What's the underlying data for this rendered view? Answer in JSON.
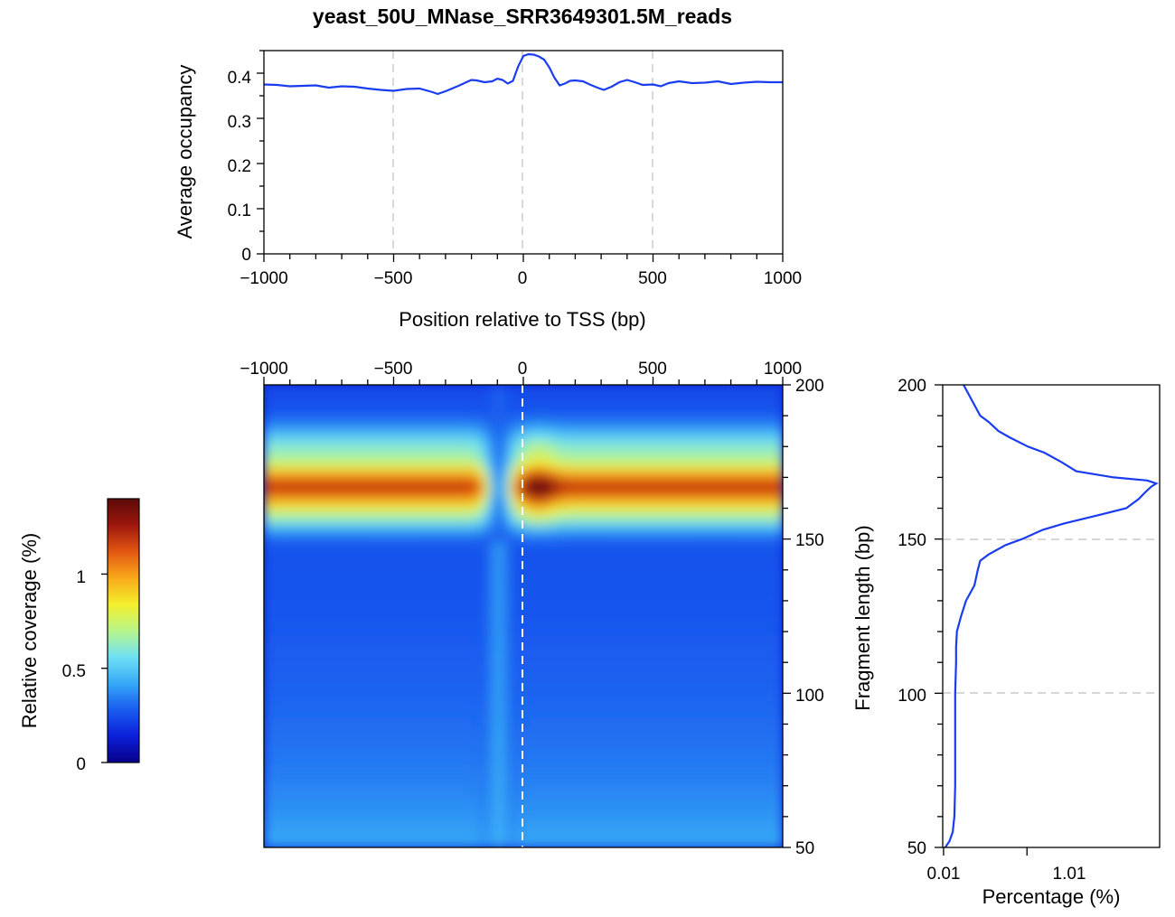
{
  "chart_data": [
    {
      "type": "line",
      "title": "yeast_50U_MNase_SRR3649301.5M_reads",
      "xlabel": "Position relative to TSS (bp)",
      "ylabel": "Average occupancy",
      "xlim": [
        -1000,
        1000
      ],
      "ylim": [
        0,
        0.45
      ],
      "xticks": [
        -1000,
        -500,
        0,
        500,
        1000
      ],
      "xtick_labels": [
        "−1000",
        "−500",
        "0",
        "500",
        "1000"
      ],
      "yticks": [
        0,
        0.1,
        0.2,
        0.3,
        0.4
      ],
      "ytick_labels": [
        "0",
        "0.1",
        "0.2",
        "0.3",
        "0.4"
      ],
      "vlines": [
        -500,
        0,
        500
      ],
      "grid": false,
      "series": [
        {
          "color": "#1a3cf0",
          "x": [
            -1000,
            -950,
            -900,
            -850,
            -800,
            -750,
            -700,
            -650,
            -600,
            -550,
            -500,
            -450,
            -400,
            -350,
            -330,
            -300,
            -250,
            -220,
            -200,
            -180,
            -150,
            -120,
            -100,
            -80,
            -60,
            -40,
            -20,
            0,
            20,
            40,
            60,
            80,
            100,
            120,
            140,
            160,
            180,
            200,
            230,
            260,
            290,
            310,
            340,
            370,
            400,
            430,
            460,
            500,
            530,
            560,
            600,
            650,
            700,
            750,
            800,
            850,
            900,
            950,
            1000
          ],
          "y": [
            0.375,
            0.374,
            0.371,
            0.372,
            0.373,
            0.368,
            0.371,
            0.37,
            0.366,
            0.363,
            0.361,
            0.365,
            0.366,
            0.358,
            0.354,
            0.36,
            0.372,
            0.38,
            0.385,
            0.384,
            0.38,
            0.382,
            0.388,
            0.385,
            0.377,
            0.383,
            0.415,
            0.438,
            0.442,
            0.441,
            0.437,
            0.43,
            0.413,
            0.39,
            0.373,
            0.377,
            0.383,
            0.384,
            0.382,
            0.374,
            0.367,
            0.363,
            0.37,
            0.38,
            0.385,
            0.38,
            0.374,
            0.375,
            0.371,
            0.378,
            0.382,
            0.378,
            0.379,
            0.382,
            0.376,
            0.379,
            0.381,
            0.38,
            0.38
          ]
        }
      ]
    },
    {
      "type": "heatmap",
      "xlabel": "",
      "ylabel": "",
      "xlim": [
        -1000,
        1000
      ],
      "ylim": [
        50,
        200
      ],
      "xticks": [
        -1000,
        -500,
        0,
        500,
        1000
      ],
      "xtick_labels": [
        "−1000",
        "−500",
        "0",
        "500",
        "1000"
      ],
      "yticks": [
        50,
        100,
        150,
        200
      ],
      "ytick_labels": [
        "50",
        "100",
        "150",
        "200"
      ],
      "vlines": [
        0
      ],
      "grid": false,
      "colormap": [
        "#08008a",
        "#0b1fd8",
        "#1a5cf0",
        "#35a8f6",
        "#6fe1f4",
        "#b8f58a",
        "#f4ef2b",
        "#f8a91a",
        "#e25611",
        "#9d170e",
        "#5c0a08"
      ],
      "peak_fragment_length": 167,
      "peak_position_bp": 60
    },
    {
      "type": "heatmap-colorbar",
      "label": "Relative coverage (%)",
      "range": [
        0,
        1.4
      ],
      "ticks": [
        0,
        0.5,
        1
      ],
      "tick_labels": [
        "0",
        "0.5",
        "1"
      ]
    },
    {
      "type": "line",
      "orientation": "vertical",
      "xlabel": "Percentage (%)",
      "ylabel": "Fragment length (bp)",
      "xlim": [
        0,
        2.6
      ],
      "ylim": [
        50,
        200
      ],
      "xticks": [
        0.01,
        1.01
      ],
      "xtick_labels": [
        "0.01",
        "1.01"
      ],
      "yticks": [
        50,
        100,
        150,
        200
      ],
      "ytick_labels": [
        "50",
        "100",
        "150",
        "200"
      ],
      "hlines": [
        100,
        150
      ],
      "grid": false,
      "series": [
        {
          "color": "#1a3cf0",
          "y": [
            50,
            52,
            55,
            60,
            70,
            80,
            90,
            100,
            110,
            115,
            120,
            125,
            130,
            135,
            140,
            143,
            145,
            148,
            150,
            153,
            155,
            158,
            160,
            163,
            165,
            167,
            168,
            169,
            170,
            172,
            175,
            178,
            180,
            183,
            185,
            188,
            190,
            195,
            200
          ],
          "x": [
            0.03,
            0.08,
            0.12,
            0.14,
            0.15,
            0.15,
            0.15,
            0.15,
            0.16,
            0.16,
            0.17,
            0.22,
            0.28,
            0.38,
            0.42,
            0.45,
            0.55,
            0.75,
            0.95,
            1.2,
            1.45,
            1.9,
            2.2,
            2.35,
            2.42,
            2.5,
            2.56,
            2.45,
            2.05,
            1.6,
            1.42,
            1.22,
            1.02,
            0.8,
            0.67,
            0.55,
            0.45,
            0.35,
            0.25
          ]
        }
      ]
    }
  ]
}
